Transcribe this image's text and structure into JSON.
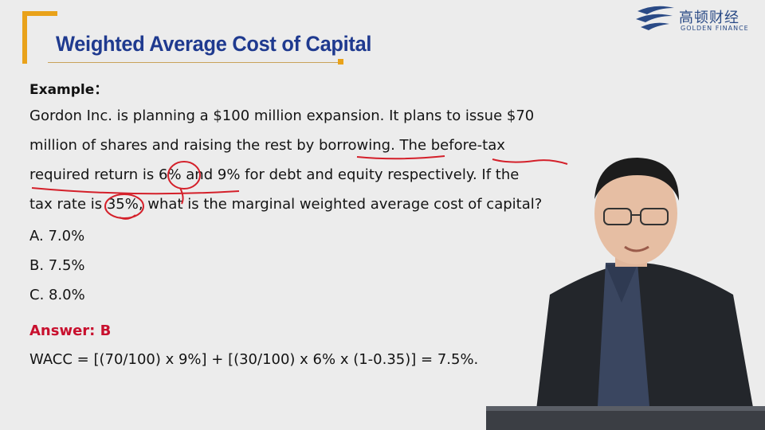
{
  "slide": {
    "title": "Weighted Average Cost of Capital",
    "label": "Example：",
    "question_lines": [
      "Gordon Inc. is planning a $100 million expansion. It plans to issue $70",
      "million of shares and raising the rest by borrowing. The before-tax",
      "required return is 6% and 9% for debt and equity respectively. If the",
      "tax rate is 35%, what is the marginal weighted average cost of capital?"
    ],
    "options": [
      "A.  7.0%",
      "B.  7.5%",
      "C.  8.0%"
    ],
    "answer": "Answer: B",
    "formula": "WACC = [(70/100) x 9%] + [(30/100) x 6% x (1-0.35)] = 7.5%."
  },
  "logo": {
    "cn": "高顿财经",
    "en": "GOLDEN FINANCE"
  },
  "colors": {
    "accent": "#e9a21a",
    "title": "#1f3a8f",
    "answer": "#c8102e",
    "ink": "#d4202a"
  }
}
